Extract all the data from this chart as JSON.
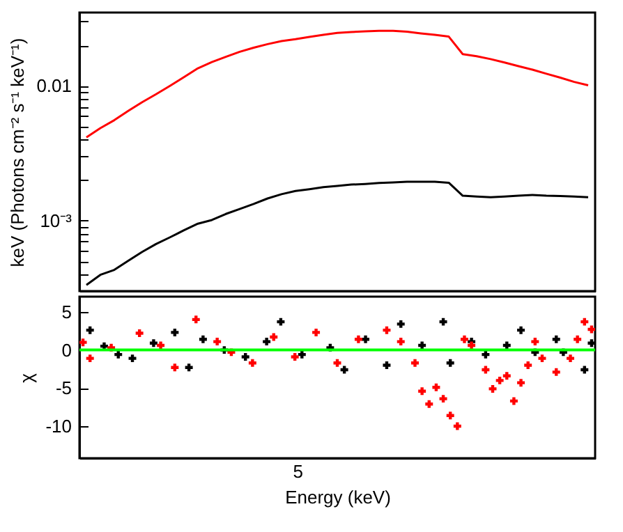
{
  "chart_data": [
    {
      "type": "line",
      "ylabel": "keV (Photons cm⁻² s⁻¹ keV⁻¹)",
      "log": "y",
      "ylim": [
        0.0003,
        0.035
      ],
      "yticks": [
        {
          "value": 0.0004,
          "label": null
        },
        {
          "value": 0.0005,
          "label": null
        },
        {
          "value": 0.0006,
          "label": null
        },
        {
          "value": 0.0007,
          "label": null
        },
        {
          "value": 0.0008,
          "label": null
        },
        {
          "value": 0.0009,
          "label": null
        },
        {
          "value": 0.001,
          "label": "10⁻³"
        },
        {
          "value": 0.002,
          "label": null
        },
        {
          "value": 0.003,
          "label": null
        },
        {
          "value": 0.004,
          "label": null
        },
        {
          "value": 0.005,
          "label": null
        },
        {
          "value": 0.006,
          "label": null
        },
        {
          "value": 0.007,
          "label": null
        },
        {
          "value": 0.008,
          "label": null
        },
        {
          "value": 0.009,
          "label": null
        },
        {
          "value": 0.01,
          "label": "0.01"
        },
        {
          "value": 0.02,
          "label": null
        },
        {
          "value": 0.03,
          "label": null
        }
      ],
      "categories": [
        null,
        null,
        null,
        null,
        null,
        null,
        null,
        null,
        null,
        null,
        null,
        null,
        null,
        null,
        null,
        null,
        null,
        null,
        null,
        null,
        null,
        null,
        null,
        null,
        null,
        null,
        null,
        null,
        null,
        null,
        null,
        null,
        null,
        null,
        null,
        null,
        null
      ],
      "series": [
        {
          "color": "#ff0000",
          "values": [
            0.00415,
            0.00486,
            0.00556,
            0.00651,
            0.00757,
            0.00867,
            0.01,
            0.0116,
            0.0135,
            0.015,
            0.0164,
            0.0179,
            0.0192,
            0.0204,
            0.0215,
            0.0222,
            0.0231,
            0.0239,
            0.0247,
            0.0251,
            0.0254,
            0.0256,
            0.0256,
            0.0252,
            0.0245,
            0.0239,
            0.0232,
            0.0172,
            0.0166,
            0.0158,
            0.0149,
            0.014,
            0.0132,
            0.0123,
            0.0115,
            0.0107,
            0.0101
          ]
        },
        {
          "color": "#000000",
          "values": [
            0.000333,
            0.000396,
            0.000431,
            0.000504,
            0.000586,
            0.000671,
            0.000752,
            0.000848,
            0.000949,
            0.00101,
            0.00112,
            0.00122,
            0.00133,
            0.00146,
            0.00157,
            0.00166,
            0.00171,
            0.00177,
            0.00181,
            0.00185,
            0.00187,
            0.0019,
            0.00192,
            0.00194,
            0.00194,
            0.00194,
            0.00191,
            0.00153,
            0.00151,
            0.00149,
            0.00151,
            0.00153,
            0.00155,
            0.00153,
            0.00152,
            0.00151,
            0.00149
          ]
        }
      ]
    },
    {
      "type": "scatter",
      "xlabel": "Energy (keV)",
      "ylabel": "χ",
      "marker": "cross",
      "annotations": [
        "5"
      ],
      "ylim": [
        -14.2,
        7
      ],
      "yticks": [
        -10,
        -5,
        0,
        5
      ],
      "categories": [
        null,
        null,
        null,
        null,
        null,
        null,
        null,
        null,
        null,
        null,
        null,
        null,
        null,
        null,
        null,
        null,
        null,
        null,
        null,
        null,
        null,
        null,
        null,
        null,
        null,
        null,
        null,
        null,
        null,
        null,
        null,
        null,
        null,
        null,
        null,
        null,
        null,
        null,
        null,
        null,
        null,
        null,
        null,
        null,
        null,
        null,
        null,
        null,
        null,
        null,
        null,
        null,
        null,
        null,
        null,
        null,
        null,
        null,
        null,
        null,
        null,
        null,
        null,
        null,
        null,
        null,
        null,
        null,
        null,
        null,
        null,
        null,
        null
      ],
      "ref_lines": [
        {
          "axis": "y",
          "value": 0,
          "color": "#00ff00"
        }
      ],
      "series": [
        {
          "color": "#000000",
          "values": [
            null,
            2.6,
            null,
            0.5,
            null,
            -0.6,
            null,
            -1.1,
            null,
            null,
            0.9,
            null,
            null,
            2.3,
            null,
            -2.3,
            null,
            1.4,
            null,
            null,
            0.0,
            null,
            null,
            -0.9,
            null,
            null,
            1.1,
            null,
            3.7,
            null,
            null,
            -0.6,
            null,
            null,
            null,
            0.3,
            null,
            -2.6,
            null,
            null,
            1.4,
            null,
            null,
            -2.0,
            null,
            3.4,
            null,
            null,
            0.6,
            null,
            null,
            3.7,
            -1.7,
            null,
            null,
            1.1,
            null,
            -0.6,
            null,
            null,
            0.6,
            null,
            2.6,
            null,
            -0.3,
            null,
            null,
            1.4,
            -0.3,
            null,
            null,
            -2.6,
            0.9
          ]
        },
        {
          "color": "#ff0000",
          "values": [
            1.0,
            -1.1,
            null,
            null,
            0.3,
            null,
            null,
            null,
            2.2,
            null,
            null,
            0.6,
            null,
            -2.3,
            null,
            null,
            4.0,
            null,
            null,
            1.1,
            null,
            -0.3,
            null,
            null,
            -1.7,
            null,
            null,
            1.7,
            null,
            null,
            -0.9,
            null,
            null,
            2.3,
            null,
            null,
            -1.7,
            null,
            null,
            1.4,
            null,
            null,
            null,
            2.6,
            null,
            1.1,
            null,
            -1.7,
            -5.4,
            -7.1,
            -4.9,
            -6.4,
            -8.6,
            -10.0,
            1.4,
            0.6,
            null,
            -2.6,
            -5.1,
            -4.0,
            -3.4,
            -6.7,
            -4.3,
            -2.0,
            1.1,
            -1.1,
            null,
            -2.9,
            null,
            -1.1,
            1.4,
            3.7,
            2.7
          ]
        }
      ]
    }
  ]
}
